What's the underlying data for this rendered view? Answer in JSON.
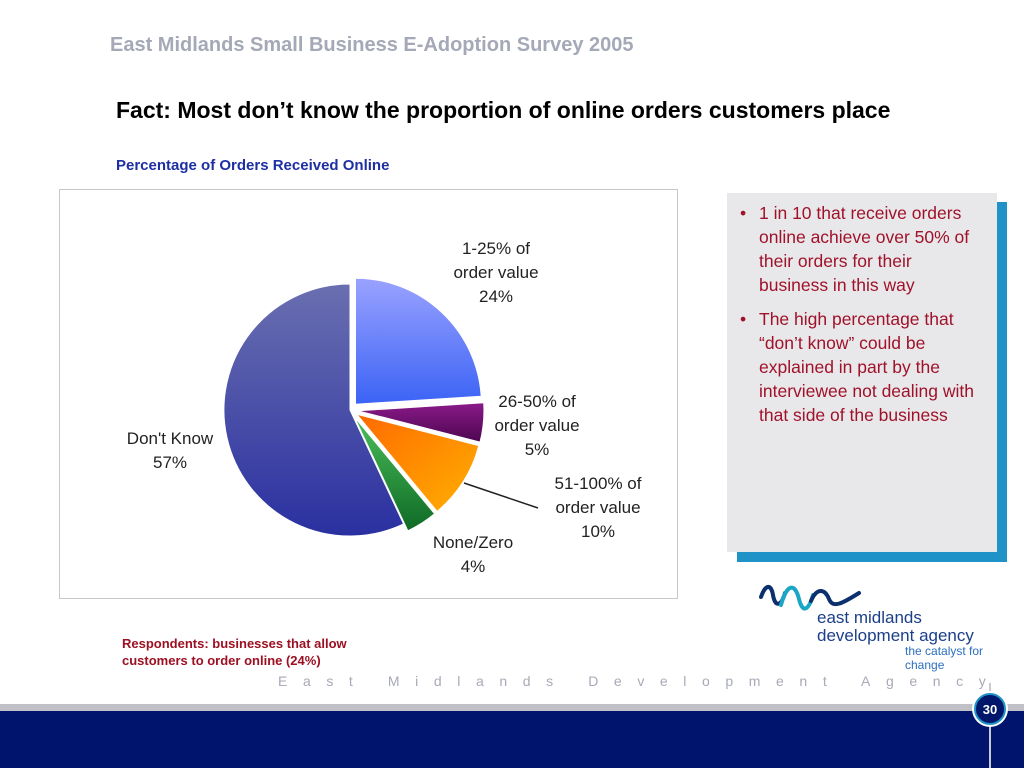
{
  "slide": {
    "survey_title": "East Midlands Small Business E-Adoption Survey 2005",
    "fact_heading": "Fact: Most don’t know the proportion of online orders customers place",
    "respondents_note": "Respondents: businesses that allow customers to order online (24%)",
    "agency_footer": "East Midlands Development Agency",
    "page_number": "30"
  },
  "notes": [
    "1 in 10 that receive orders online achieve over 50% of their orders for their business in this way",
    "The high percentage that “don’t know” could be explained in part by the interviewee not dealing with that side of the business"
  ],
  "logo": {
    "line1": "east midlands",
    "line2": "development agency",
    "tagline": "the catalyst for change",
    "mark_icon": "wave-mark-icon"
  },
  "chart_data": {
    "type": "pie",
    "title": "Percentage of Orders Received Online",
    "categories": [
      "1-25% of order value",
      "26-50% of order value",
      "51-100% of order value",
      "None/Zero",
      "Don't Know"
    ],
    "values": [
      24,
      5,
      10,
      4,
      57
    ],
    "value_labels": [
      "24%",
      "5%",
      "10%",
      "4%",
      "57%"
    ],
    "label_lines": [
      [
        "1-25% of",
        "order value",
        "24%"
      ],
      [
        "26-50% of",
        "order value",
        "5%"
      ],
      [
        "51-100% of",
        "order value",
        "10%"
      ],
      [
        "None/Zero",
        "4%"
      ],
      [
        "Don't Know",
        "57%"
      ]
    ],
    "colors": [
      "#4a6cf7",
      "#6b0a6b",
      "#ff8a00",
      "#1e8c3a",
      "#353a9c"
    ],
    "exploded": [
      true,
      true,
      true,
      true,
      false
    ],
    "start_angle_deg": 0,
    "legend": "none"
  }
}
